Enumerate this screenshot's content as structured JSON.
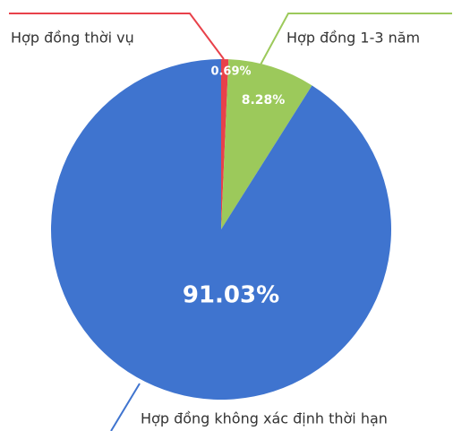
{
  "chart_data": {
    "type": "pie",
    "categories": [
      "Hợp đồng thời vụ",
      "Hợp đồng 1-3 năm",
      "Hợp đồng không xác định thời hạn"
    ],
    "values": [
      0.69,
      8.28,
      91.03
    ],
    "value_labels": [
      "0.69%",
      "8.28%",
      "91.03%"
    ],
    "colors": [
      "#e8414a",
      "#9cc95b",
      "#3f74cf"
    ]
  }
}
